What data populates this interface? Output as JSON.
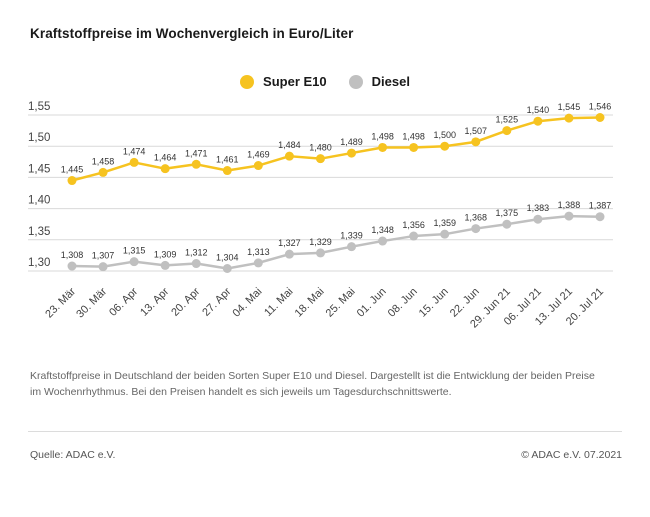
{
  "title": "Kraftstoffpreise im Wochenvergleich in Euro/Liter",
  "caption": "Kraftstoffpreise in Deutschland der beiden Sorten Super E10 und Diesel. Dargestellt ist die Entwicklung der beiden Preise im Wochenrhythmus. Bei den Preisen handelt es sich jeweils um Tagesdurchschnittswerte.",
  "footer": {
    "source": "Quelle: ADAC e.V.",
    "copyright": "© ADAC e.V. 07.2021"
  },
  "colors": {
    "super_e10": "#f6c320",
    "diesel": "#c0c0c0",
    "grid": "#d9d9d9",
    "axis_text": "#444444",
    "value_label": "#333333"
  },
  "chart_data": {
    "type": "line",
    "title": "Kraftstoffpreise im Wochenvergleich in Euro/Liter",
    "x": [
      "23. Mär",
      "30. Mär",
      "06. Apr",
      "13. Apr",
      "20. Apr",
      "27. Apr",
      "04. Mai",
      "11. Mai",
      "18. Mai",
      "25. Mai",
      "01. Jun",
      "08. Jun",
      "15. Jun",
      "22. Jun",
      "29. Jun 21",
      "06. Jul 21",
      "13. Jul 21",
      "20. Jul 21"
    ],
    "series": [
      {
        "name": "Super E10",
        "color": "#f6c320",
        "values": [
          1.445,
          1.458,
          1.474,
          1.464,
          1.471,
          1.461,
          1.469,
          1.484,
          1.48,
          1.489,
          1.498,
          1.498,
          1.5,
          1.507,
          1.525,
          1.54,
          1.545,
          1.546
        ]
      },
      {
        "name": "Diesel",
        "color": "#c0c0c0",
        "values": [
          1.308,
          1.307,
          1.315,
          1.309,
          1.312,
          1.304,
          1.313,
          1.327,
          1.329,
          1.339,
          1.348,
          1.356,
          1.359,
          1.368,
          1.375,
          1.383,
          1.388,
          1.387
        ]
      }
    ],
    "ylabel": "Euro/Liter",
    "xlabel": "",
    "ylim": [
      1.3,
      1.55
    ],
    "yticks": [
      1.55,
      1.5,
      1.45,
      1.4,
      1.35,
      1.3
    ],
    "grid": true,
    "legend_position": "top-center",
    "value_labels": true,
    "decimal_separator": ","
  }
}
